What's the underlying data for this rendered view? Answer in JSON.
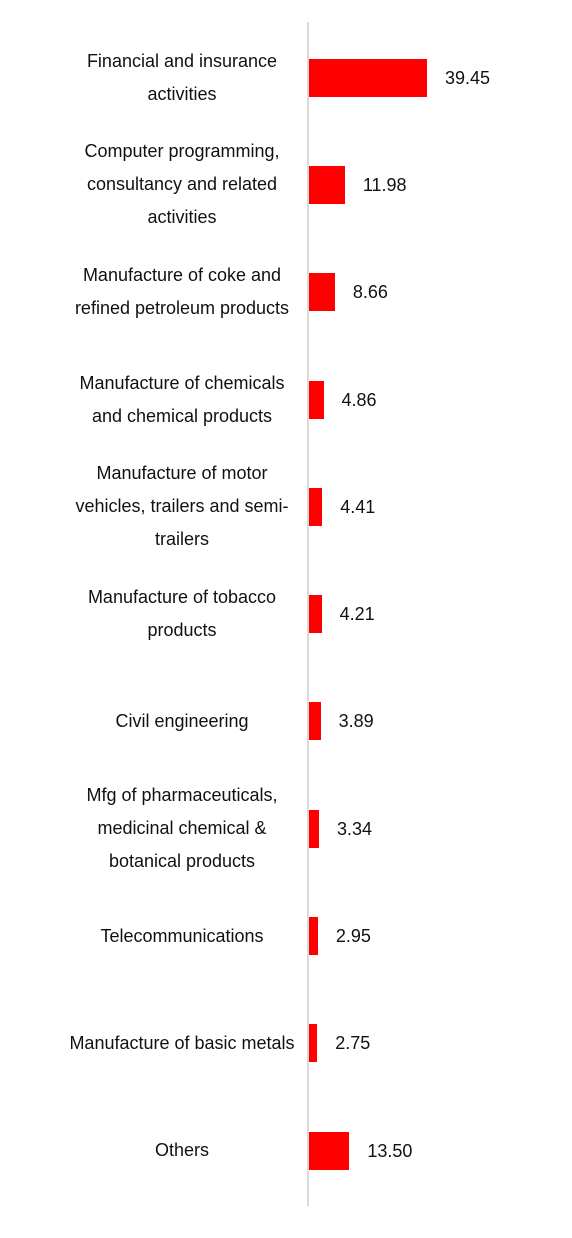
{
  "chart_data": {
    "type": "bar",
    "orientation": "horizontal",
    "categories": [
      "Financial and insurance activities",
      "Computer programming, consultancy and related activities",
      "Manufacture of coke and refined petroleum products",
      "Manufacture of chemicals and chemical products",
      "Manufacture of motor vehicles, trailers and semi-trailers",
      "Manufacture of tobacco products",
      "Civil engineering",
      "Mfg of pharmaceuticals, medicinal chemical & botanical products",
      "Telecommunications",
      "Manufacture of basic metals",
      "Others"
    ],
    "values": [
      39.45,
      11.98,
      8.66,
      4.86,
      4.41,
      4.21,
      3.89,
      3.34,
      2.95,
      2.75,
      13.5
    ],
    "value_labels": [
      "39.45",
      "11.98",
      "8.66",
      "4.86",
      "4.41",
      "4.21",
      "3.89",
      "3.34",
      "2.95",
      "2.75",
      "13.50"
    ],
    "color": "#ff0000"
  }
}
